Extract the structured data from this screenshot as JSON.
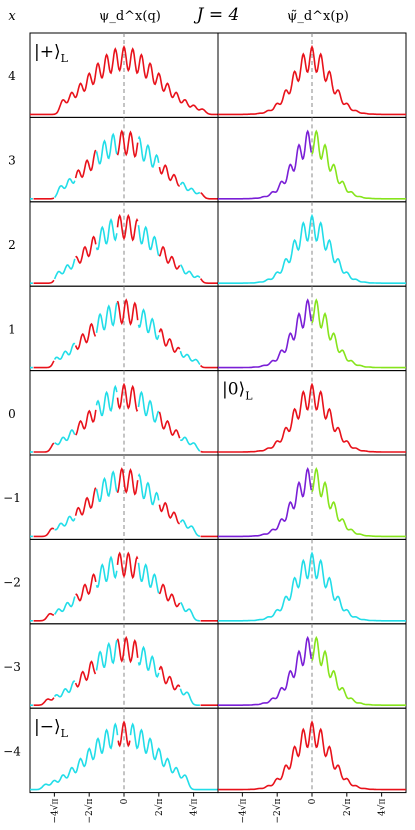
{
  "figure": {
    "title_left": "ψ_d^x(q)",
    "title_center": "J = 4",
    "title_right": "ψ̃_d^x(p)",
    "row_axis_label": "x"
  },
  "chart_data": {
    "type": "line",
    "J": 4,
    "rows": [
      4,
      3,
      2,
      1,
      0,
      -1,
      -2,
      -3,
      -4
    ],
    "row_labels": [
      "4",
      "3",
      "2",
      "1",
      "0",
      "−1",
      "−2",
      "−3",
      "−4"
    ],
    "x_ticks": [
      {
        "value": -4,
        "label": "−4√π"
      },
      {
        "value": -2,
        "label": "−2√π"
      },
      {
        "value": 0,
        "label": "0"
      },
      {
        "value": 2,
        "label": "2√π"
      },
      {
        "value": 4,
        "label": "4√π"
      }
    ],
    "x_unit": "√π",
    "xlim": [
      -5.4,
      5.4
    ],
    "reference_line_x": 0,
    "annotations": [
      {
        "panel": "left",
        "row": 4,
        "text": "|+⟩",
        "sub": "L"
      },
      {
        "panel": "right",
        "row": 0,
        "text": "|0⟩",
        "sub": "L"
      },
      {
        "panel": "left",
        "row": -4,
        "text": "|−⟩",
        "sub": "L"
      }
    ],
    "colors": {
      "red": "#e8121b",
      "cyan": "#22dde8",
      "purple": "#7a1fd6",
      "green": "#86e41c",
      "axis": "#000000",
      "refline": "#8a8a8a"
    }
  }
}
